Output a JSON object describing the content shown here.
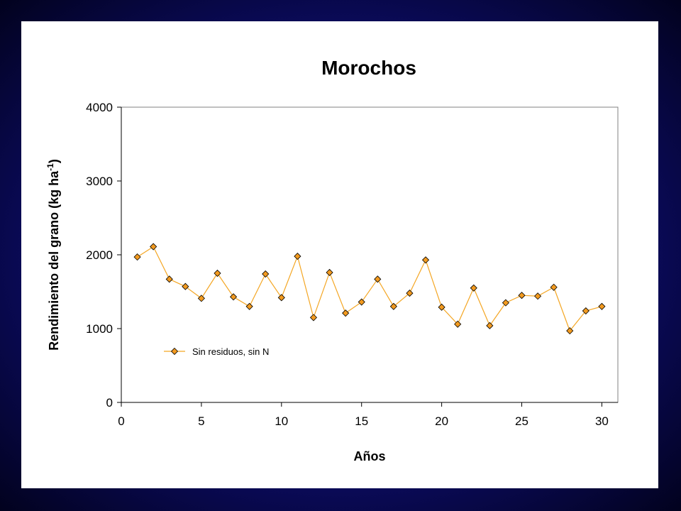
{
  "chart_data": {
    "type": "line",
    "title": "Morochos",
    "xlabel": "Años",
    "ylabel": "Rendimiento del grano (kg ha",
    "ylabel_sup": "-1",
    "ylabel_end": ")",
    "xlim": [
      0,
      31
    ],
    "ylim": [
      0,
      4000
    ],
    "xticks": [
      0,
      5,
      10,
      15,
      20,
      25,
      30
    ],
    "yticks": [
      0,
      1000,
      2000,
      3000,
      4000
    ],
    "grid": false,
    "legend_position": "inside-lower-left",
    "series": [
      {
        "name": "Sin residuos, sin N",
        "color": "#F4A623",
        "marker_fill": "#F29A1F",
        "marker": "diamond",
        "x": [
          1,
          2,
          3,
          4,
          5,
          6,
          7,
          8,
          9,
          10,
          11,
          12,
          13,
          14,
          15,
          16,
          17,
          18,
          19,
          20,
          21,
          22,
          23,
          24,
          25,
          26,
          27,
          28,
          29,
          30
        ],
        "y": [
          1970,
          2110,
          1670,
          1570,
          1410,
          1750,
          1430,
          1300,
          1740,
          1420,
          1980,
          1150,
          1760,
          1210,
          1360,
          1670,
          1300,
          1480,
          1930,
          1290,
          1060,
          1550,
          1040,
          1350,
          1450,
          1440,
          1560,
          970,
          1240,
          1300
        ]
      }
    ]
  }
}
